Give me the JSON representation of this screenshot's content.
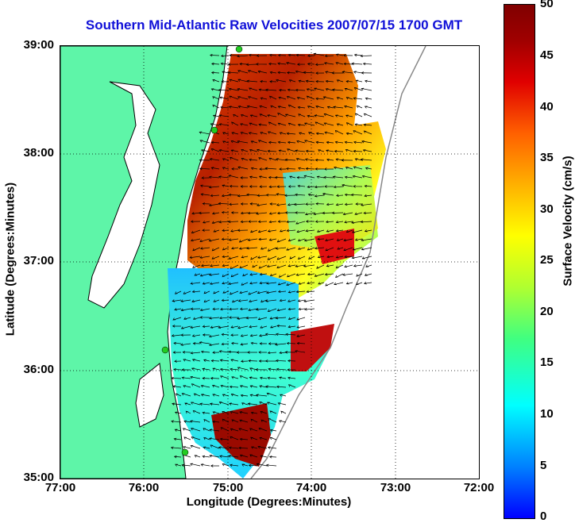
{
  "title": "Southern Mid-Atlantic Raw Velocities 2007/07/15 1700 GMT",
  "axes": {
    "xlabel": "Longitude (Degrees:Minutes)",
    "ylabel": "Latitude (Degrees:Minutes)",
    "xticks": [
      "77:00",
      "76:00",
      "75:00",
      "74:00",
      "73:00",
      "72:00"
    ],
    "yticks": [
      "39:00",
      "38:00",
      "37:00",
      "36:00",
      "35:00"
    ]
  },
  "colorbar": {
    "label": "Surface Velocity (cm/s)",
    "ticks": [
      "50",
      "45",
      "40",
      "35",
      "30",
      "25",
      "20",
      "15",
      "10",
      "5",
      "0"
    ],
    "range": [
      0,
      50
    ],
    "colormap": [
      "#0000ff",
      "#00ffff",
      "#40ff80",
      "#ffff00",
      "#ff6000",
      "#800000"
    ]
  },
  "colors": {
    "land": "#5ef5a8",
    "coast": "#000000",
    "title": "#1010d8",
    "station": "#22cc22"
  }
}
